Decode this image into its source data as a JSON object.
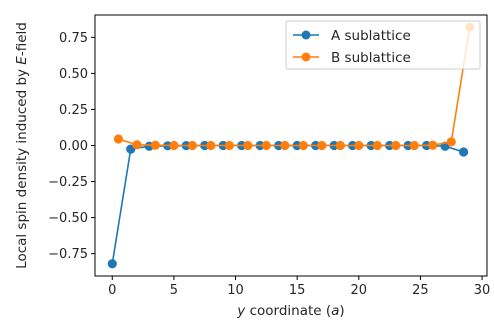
{
  "chart_data": {
    "type": "line",
    "xlabel_var": "y",
    "xlabel_mid": " coordinate (",
    "xlabel_unit": "a",
    "xlabel_end": ")",
    "ylabel_main": "Local spin density induced by ",
    "ylabel_var": "E",
    "ylabel_end": "-field",
    "xlim": [
      -1.4,
      30.4
    ],
    "ylim": [
      -0.905,
      0.905
    ],
    "xticks": [
      0,
      5,
      10,
      15,
      20,
      25,
      30
    ],
    "yticks": [
      -0.75,
      -0.5,
      -0.25,
      0.0,
      0.25,
      0.5,
      0.75
    ],
    "ytick_labels": [
      "−0.75",
      "−0.50",
      "−0.25",
      "0.00",
      "0.25",
      "0.50",
      "0.75"
    ],
    "legend_position": "top-right",
    "series": [
      {
        "name": "A sublattice",
        "color": "#1f77b4",
        "x": [
          0.0,
          1.5,
          3.0,
          4.5,
          6.0,
          7.5,
          9.0,
          10.5,
          12.0,
          13.5,
          15.0,
          16.5,
          18.0,
          19.5,
          21.0,
          22.5,
          24.0,
          25.5,
          27.0,
          28.5
        ],
        "y": [
          -0.82,
          -0.025,
          -0.005,
          -0.002,
          -0.001,
          0.0,
          0.0,
          0.0,
          0.0,
          0.0,
          0.0,
          0.0,
          0.0,
          0.0,
          0.0,
          0.0,
          0.0,
          0.0,
          -0.005,
          -0.045
        ]
      },
      {
        "name": "B sublattice",
        "color": "#ff7f0e",
        "x": [
          0.5,
          2.0,
          3.5,
          5.0,
          6.5,
          8.0,
          9.5,
          11.0,
          12.5,
          14.0,
          15.5,
          17.0,
          18.5,
          20.0,
          21.5,
          23.0,
          24.5,
          26.0,
          27.5,
          29.0
        ],
        "y": [
          0.045,
          0.005,
          0.002,
          0.0,
          0.0,
          0.0,
          0.0,
          0.0,
          0.0,
          0.0,
          0.0,
          0.0,
          0.0,
          0.0,
          0.0,
          0.0,
          0.0,
          0.002,
          0.025,
          0.82
        ]
      }
    ]
  }
}
